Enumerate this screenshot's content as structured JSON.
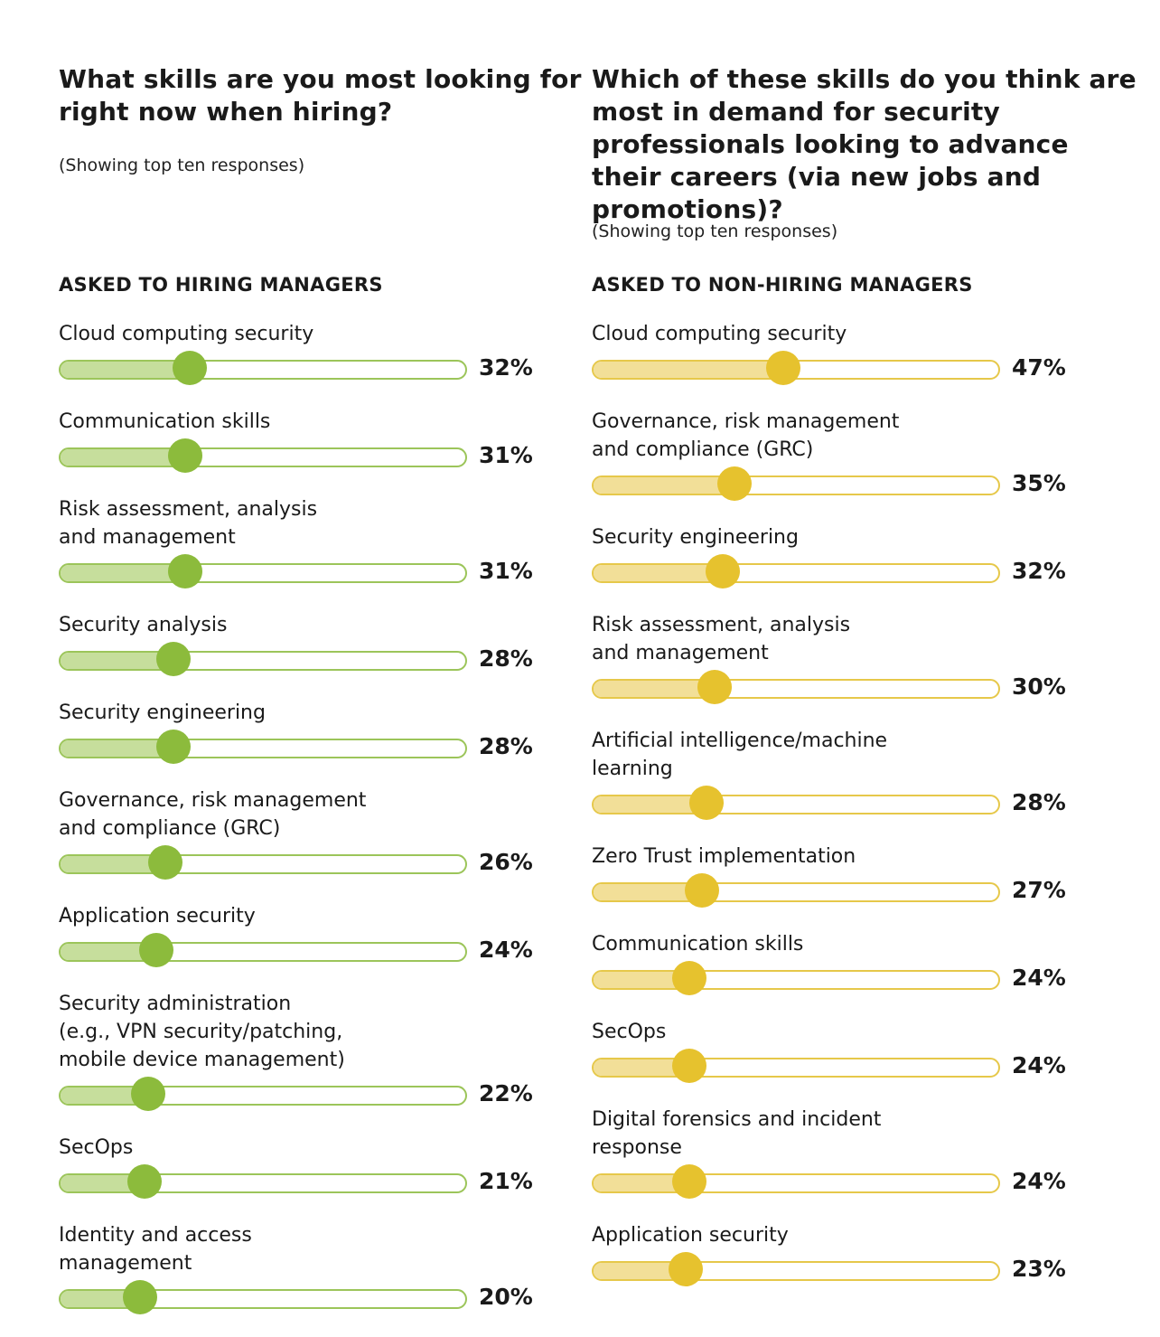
{
  "chart_data": [
    {
      "type": "bar",
      "title": "What skills are you most looking for right now when hiring?",
      "subtitle": "(Showing top ten responses)",
      "heading": "ASKED TO HIRING MANAGERS",
      "color": "#8cbb3c",
      "fill_color": "#c6de9c",
      "xlim": [
        0,
        100
      ],
      "categories": [
        "Cloud computing security",
        "Communication skills",
        "Risk assessment, analysis\nand management",
        "Security analysis",
        "Security engineering",
        "Governance, risk management\nand compliance (GRC)",
        "Application security",
        "Security administration\n(e.g., VPN security/patching,\nmobile device management)",
        "SecOps",
        "Identity and access\nmanagement"
      ],
      "values": [
        32,
        31,
        31,
        28,
        28,
        26,
        24,
        22,
        21,
        20
      ],
      "value_labels": [
        "32%",
        "31%",
        "31%",
        "28%",
        "28%",
        "26%",
        "24%",
        "22%",
        "21%",
        "20%"
      ]
    },
    {
      "type": "bar",
      "title": "Which of these skills do you think are most in demand for security professionals looking to advance their careers (via new jobs and promotions)?",
      "subtitle": "(Showing top ten responses)",
      "heading": "ASKED TO NON-HIRING MANAGERS",
      "color": "#e6c22e",
      "fill_color": "#f2df98",
      "xlim": [
        0,
        100
      ],
      "categories": [
        "Cloud computing security",
        "Governance, risk management\nand compliance (GRC)",
        "Security engineering",
        "Risk assessment, analysis\nand management",
        "Artificial intelligence/machine\nlearning",
        "Zero Trust implementation",
        "Communication skills",
        "SecOps",
        "Digital forensics and incident\nresponse",
        "Application security"
      ],
      "values": [
        47,
        35,
        32,
        30,
        28,
        27,
        24,
        24,
        24,
        23
      ],
      "value_labels": [
        "47%",
        "35%",
        "32%",
        "30%",
        "28%",
        "27%",
        "24%",
        "24%",
        "24%",
        "23%"
      ]
    }
  ]
}
